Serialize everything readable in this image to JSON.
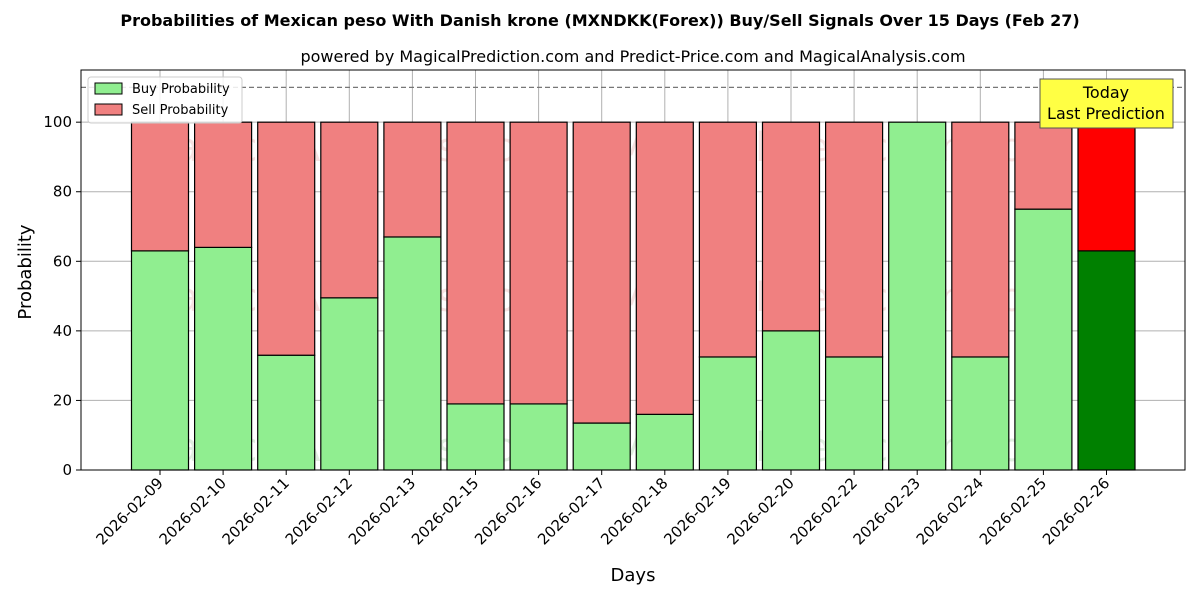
{
  "chart_data": {
    "type": "bar",
    "stacked": true,
    "title": "Probabilities of Mexican peso With Danish krone (MXNDKK(Forex)) Buy/Sell Signals Over 15 Days (Feb 27)",
    "subtitle": "powered by MagicalPrediction.com and Predict-Price.com and MagicalAnalysis.com",
    "xlabel": "Days",
    "ylabel": "Probability",
    "ylim": [
      0,
      115
    ],
    "yticks": [
      0,
      20,
      40,
      60,
      80,
      100
    ],
    "reference_line": 110,
    "grid": true,
    "legend_position": "top-left",
    "categories": [
      "2026-02-09",
      "2026-02-10",
      "2026-02-11",
      "2026-02-12",
      "2026-02-13",
      "2026-02-15",
      "2026-02-16",
      "2026-02-17",
      "2026-02-18",
      "2026-02-19",
      "2026-02-20",
      "2026-02-22",
      "2026-02-23",
      "2026-02-24",
      "2026-02-25",
      "2026-02-26"
    ],
    "series": [
      {
        "name": "Buy Probability",
        "color": "#90ee90",
        "values": [
          63,
          64,
          33,
          49.5,
          67,
          19,
          19,
          13.5,
          16,
          32.5,
          40,
          32.5,
          100,
          32.5,
          75,
          63
        ]
      },
      {
        "name": "Sell Probability",
        "color": "#f08080",
        "values": [
          37,
          36,
          67,
          50.5,
          33,
          81,
          81,
          86.5,
          84,
          67.5,
          60,
          67.5,
          0,
          67.5,
          25,
          37
        ]
      }
    ],
    "highlight": {
      "index": 15,
      "buy_color": "#008000",
      "sell_color": "#ff0000"
    },
    "annotation": {
      "line1": "Today",
      "line2": "Last Prediction",
      "background": "#ffff44"
    },
    "watermarks": [
      "MagicalAnalysis.com",
      "MagicalPrediction.com"
    ]
  }
}
